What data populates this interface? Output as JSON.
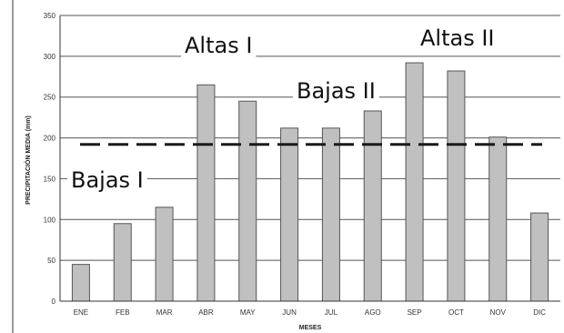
{
  "chart_data": {
    "type": "bar",
    "title": "",
    "xlabel": "MESES",
    "ylabel": "PRECIPITACIÓN MEDIA (mm)",
    "categories": [
      "ENE",
      "FEB",
      "MAR",
      "ABR",
      "MAY",
      "JUN",
      "JUL",
      "AGO",
      "SEP",
      "OCT",
      "NOV",
      "DIC"
    ],
    "values": [
      45,
      95,
      115,
      265,
      245,
      212,
      212,
      233,
      292,
      282,
      201,
      108
    ],
    "ylim": [
      0,
      350
    ],
    "yticks": [
      0,
      50,
      100,
      150,
      200,
      250,
      300,
      350
    ],
    "grid": true,
    "bar_color": "#c0c0c0",
    "bar_stroke": "#555555",
    "reference_line": {
      "value": 192,
      "style": "dashed",
      "color": "#1a1a1a"
    },
    "annotations": [
      {
        "text": "Bajas I",
        "near": "ENE-FEB"
      },
      {
        "text": "Altas I",
        "near": "ABR-MAY"
      },
      {
        "text": "Bajas II",
        "near": "JUL-AGO"
      },
      {
        "text": "Altas II",
        "near": "SEP-OCT"
      }
    ]
  }
}
